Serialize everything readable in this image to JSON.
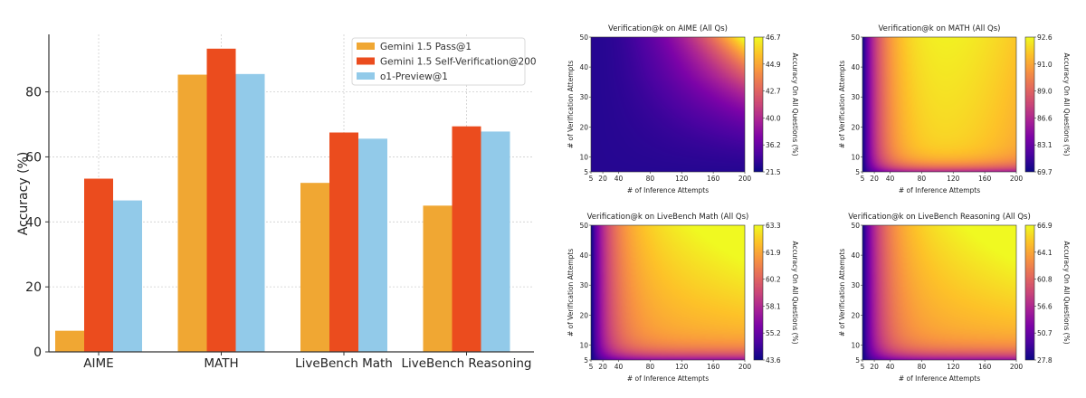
{
  "chart_data": [
    {
      "type": "bar",
      "title": "",
      "xlabel": "",
      "ylabel": "Accuracy (%)",
      "ylim": [
        0,
        97.7
      ],
      "yticks": [
        0,
        20,
        40,
        60,
        80
      ],
      "grid": true,
      "legend_position": "top-right",
      "categories": [
        "AIME",
        "MATH",
        "LiveBench Math",
        "LiveBench Reasoning"
      ],
      "series": [
        {
          "name": "Gemini 1.5 Pass@1",
          "color": "#f0a733",
          "values": [
            6.5,
            85.3,
            52.0,
            45.0
          ]
        },
        {
          "name": "Gemini 1.5 Self-Verification@200",
          "color": "#eb4c1e",
          "values": [
            53.3,
            93.3,
            67.5,
            69.4
          ]
        },
        {
          "name": "o1-Preview@1",
          "color": "#92cae9",
          "values": [
            46.6,
            85.5,
            65.6,
            67.8
          ]
        }
      ]
    },
    {
      "type": "heatmap",
      "title": "Verification@k on AIME (All Qs)",
      "xlabel": "# of Inference Attempts",
      "ylabel": "# of Verification Attempts",
      "colorbar_label": "Accuracy On All Questions (%)",
      "colormap": "plasma",
      "xlim": [
        5,
        200
      ],
      "ylim": [
        5,
        50
      ],
      "xticks": [
        5,
        20,
        40,
        80,
        120,
        160,
        200
      ],
      "yticks": [
        5,
        10,
        20,
        30,
        40,
        50
      ],
      "colorbar_ticks": [
        "21.5",
        "36.2",
        "40.0",
        "42.7",
        "44.9",
        "46.7"
      ],
      "value_range": [
        21.5,
        46.7
      ],
      "pattern": "grows-with-both-max-top-right"
    },
    {
      "type": "heatmap",
      "title": "Verification@k on MATH (All Qs)",
      "xlabel": "# of Inference Attempts",
      "ylabel": "# of Verification Attempts",
      "colorbar_label": "Accuracy On All Questions (%)",
      "colormap": "plasma",
      "xlim": [
        5,
        200
      ],
      "ylim": [
        5,
        50
      ],
      "xticks": [
        5,
        20,
        40,
        80,
        120,
        160,
        200
      ],
      "yticks": [
        5,
        10,
        20,
        30,
        40,
        50
      ],
      "colorbar_ticks": [
        "69.7",
        "83.1",
        "86.6",
        "89.0",
        "91.0",
        "92.6"
      ],
      "value_range": [
        69.7,
        92.6
      ],
      "pattern": "saturates-quickly-max-near-x80-top"
    },
    {
      "type": "heatmap",
      "title": "Verification@k on LiveBench Math (All Qs)",
      "xlabel": "# of Inference Attempts",
      "ylabel": "# of Verification Attempts",
      "colorbar_label": "Accuracy On All Questions (%)",
      "colormap": "plasma",
      "xlim": [
        5,
        200
      ],
      "ylim": [
        5,
        50
      ],
      "xticks": [
        5,
        20,
        40,
        80,
        120,
        160,
        200
      ],
      "yticks": [
        5,
        10,
        20,
        30,
        40,
        50
      ],
      "colorbar_ticks": [
        "43.6",
        "55.2",
        "58.1",
        "60.2",
        "61.9",
        "63.3"
      ],
      "value_range": [
        43.6,
        63.3
      ],
      "pattern": "saturates-max-top-right"
    },
    {
      "type": "heatmap",
      "title": "Verification@k on LiveBench Reasoning (All Qs)",
      "xlabel": "# of Inference Attempts",
      "ylabel": "# of Verification Attempts",
      "colorbar_label": "Accuracy On All Questions (%)",
      "colormap": "plasma",
      "xlim": [
        5,
        200
      ],
      "ylim": [
        5,
        50
      ],
      "xticks": [
        5,
        20,
        40,
        80,
        120,
        160,
        200
      ],
      "yticks": [
        5,
        10,
        20,
        30,
        40,
        50
      ],
      "colorbar_ticks": [
        "27.8",
        "50.7",
        "56.6",
        "60.8",
        "64.1",
        "66.9"
      ],
      "value_range": [
        27.8,
        66.9
      ],
      "pattern": "saturates-max-top-right"
    }
  ]
}
